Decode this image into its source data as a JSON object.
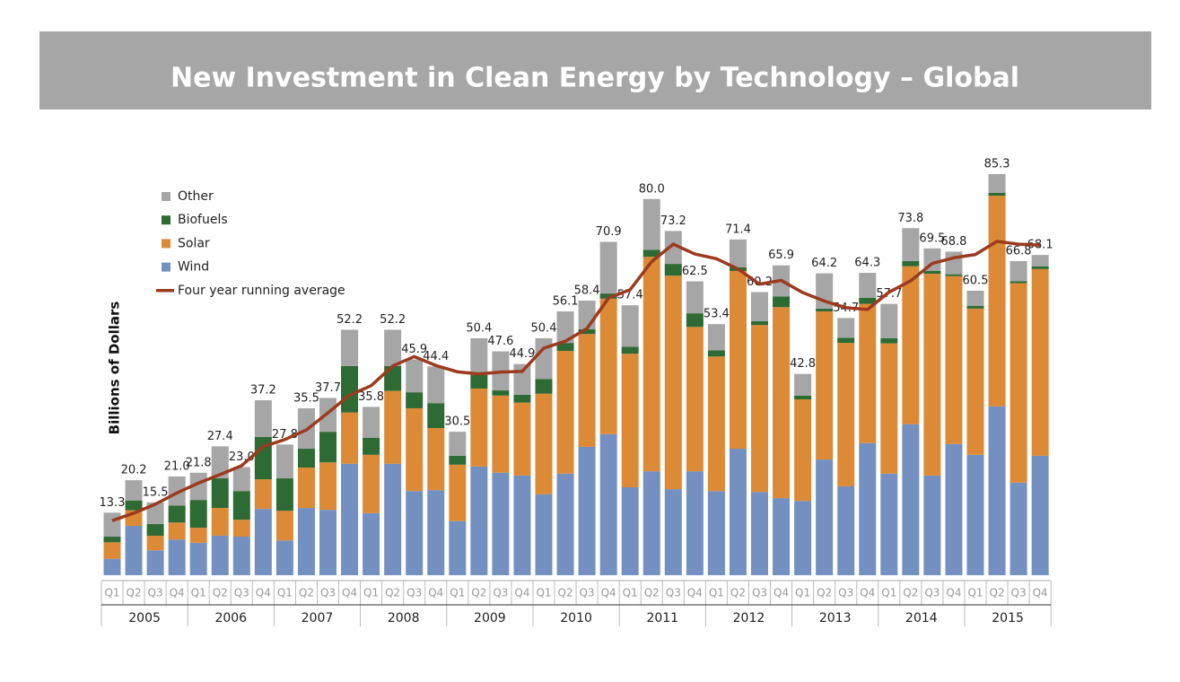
{
  "chart_data": {
    "type": "stacked-bar",
    "title": "New Investment in Clean Energy by Technology – Global",
    "y_label": "Billions of Dollars",
    "categories": [
      "Q1",
      "Q2",
      "Q3",
      "Q4",
      "Q1",
      "Q2",
      "Q3",
      "Q4",
      "Q1",
      "Q2",
      "Q3",
      "Q4",
      "Q1",
      "Q2",
      "Q3",
      "Q4",
      "Q1",
      "Q2",
      "Q3",
      "Q4",
      "Q1",
      "Q2",
      "Q3",
      "Q4",
      "Q1",
      "Q2",
      "Q3",
      "Q4",
      "Q1",
      "Q2",
      "Q3",
      "Q4",
      "Q1",
      "Q2",
      "Q3",
      "Q4",
      "Q1",
      "Q2",
      "Q3",
      "Q4",
      "Q1",
      "Q2",
      "Q3",
      "Q4"
    ],
    "groups": [
      "2005",
      "2006",
      "2007",
      "2008",
      "2009",
      "2010",
      "2011",
      "2012",
      "2013",
      "2014",
      "2015"
    ],
    "series": [
      {
        "name": "Wind",
        "color": "#7390c0",
        "values": [
          3.5,
          10.5,
          5.3,
          7.6,
          6.9,
          8.4,
          8.2,
          14.1,
          7.4,
          14.3,
          13.9,
          23.7,
          13.2,
          23.7,
          17.9,
          18.1,
          11.5,
          23.1,
          21.8,
          21.2,
          17.2,
          21.6,
          27.3,
          30.0,
          18.7,
          22.1,
          18.3,
          22.1,
          17.9,
          26.9,
          17.7,
          16.4,
          15.8,
          24.6,
          18.9,
          28.1,
          21.6,
          32.1,
          21.2,
          27.9,
          25.6,
          35.9,
          19.7,
          25.4
        ]
      },
      {
        "name": "Solar",
        "color": "#dd8a36",
        "values": [
          3.5,
          3.3,
          3.1,
          3.6,
          3.2,
          5.9,
          3.6,
          6.3,
          6.3,
          8.6,
          10.1,
          10.9,
          12.4,
          15.5,
          17.6,
          13.2,
          12.0,
          16.6,
          16.4,
          15.5,
          21.4,
          26.1,
          24.0,
          28.8,
          28.4,
          45.6,
          45.4,
          30.7,
          28.6,
          37.8,
          35.5,
          40.6,
          21.6,
          31.5,
          30.5,
          29.6,
          27.7,
          33.6,
          42.9,
          35.7,
          31.1,
          44.8,
          42.4,
          39.7
        ]
      },
      {
        "name": "Biofuels",
        "color": "#2e6a33",
        "values": [
          1.2,
          2.1,
          2.5,
          3.6,
          5.9,
          6.3,
          6.1,
          9.0,
          6.9,
          4.0,
          6.5,
          9.9,
          3.6,
          5.3,
          3.4,
          5.3,
          1.9,
          2.9,
          1.1,
          1.7,
          3.1,
          1.7,
          1.0,
          1.1,
          1.5,
          1.5,
          2.5,
          2.9,
          1.3,
          0.8,
          0.8,
          2.3,
          0.8,
          0.6,
          1.1,
          1.3,
          1.1,
          1.1,
          0.6,
          0.4,
          0.6,
          0.6,
          0.4,
          0.6
        ]
      },
      {
        "name": "Other",
        "color": "#a6a6a6",
        "values": [
          5.1,
          4.3,
          4.6,
          6.2,
          5.8,
          6.8,
          5.1,
          7.8,
          7.2,
          8.6,
          7.2,
          7.7,
          6.6,
          7.7,
          7.0,
          7.8,
          5.1,
          7.8,
          8.3,
          6.5,
          8.7,
          6.7,
          6.1,
          11.0,
          8.8,
          10.8,
          7.0,
          6.8,
          5.6,
          5.9,
          6.2,
          6.6,
          4.6,
          7.5,
          4.2,
          5.3,
          7.3,
          7.0,
          4.8,
          4.8,
          3.2,
          4.0,
          4.3,
          2.4
        ]
      }
    ],
    "totals": [
      13.3,
      20.2,
      15.5,
      21.0,
      21.8,
      27.4,
      23.0,
      37.2,
      27.8,
      35.5,
      37.7,
      52.2,
      35.8,
      52.2,
      45.9,
      44.4,
      30.5,
      50.4,
      47.6,
      44.9,
      50.4,
      56.1,
      58.4,
      70.9,
      57.4,
      80.0,
      73.2,
      62.5,
      53.4,
      71.4,
      60.2,
      65.9,
      42.8,
      64.2,
      54.7,
      64.3,
      57.7,
      73.8,
      69.5,
      68.8,
      60.5,
      85.3,
      66.8,
      68.1
    ],
    "total_labels": [
      "13.3",
      "20.2",
      "15.5",
      "21.0",
      "21.8",
      "27.4",
      "23.0",
      "37.2",
      "27.8",
      "35.5",
      "37.7",
      "52.2",
      "35.8",
      "52.2",
      "45.9",
      "44.4",
      "30.5",
      "50.4",
      "47.6",
      "44.9",
      "50.4",
      "56.1",
      "58.4",
      "70.9",
      "57.4",
      "80.0",
      "73.2",
      "62.5",
      "53.4",
      "71.4",
      "60.2",
      "65.9",
      "42.8",
      "64.2",
      "54.7",
      "64.3",
      "57.7",
      "73.8",
      "69.5",
      "68.8",
      "60.5",
      "85.3",
      "66.8",
      "68.1"
    ],
    "line": {
      "name": "Four year running average",
      "color": "#9b3a1f",
      "values": [
        11.6,
        13.2,
        15.1,
        17.5,
        19.6,
        21.4,
        23.3,
        27.35,
        28.85,
        30.9,
        34.55,
        38.3,
        40.3,
        44.5,
        46.5,
        44.6,
        43.25,
        42.8,
        43.2,
        43.35,
        48.3,
        49.75,
        52.45,
        58.95,
        60.7,
        66.7,
        70.4,
        68.3,
        67.3,
        65.1,
        61.9,
        62.7,
        60.1,
        58.3,
        56.9,
        56.5,
        60.2,
        62.6,
        66.3,
        67.5,
        68.2,
        71.0,
        70.4,
        70.2
      ]
    },
    "legend": "top-left"
  }
}
